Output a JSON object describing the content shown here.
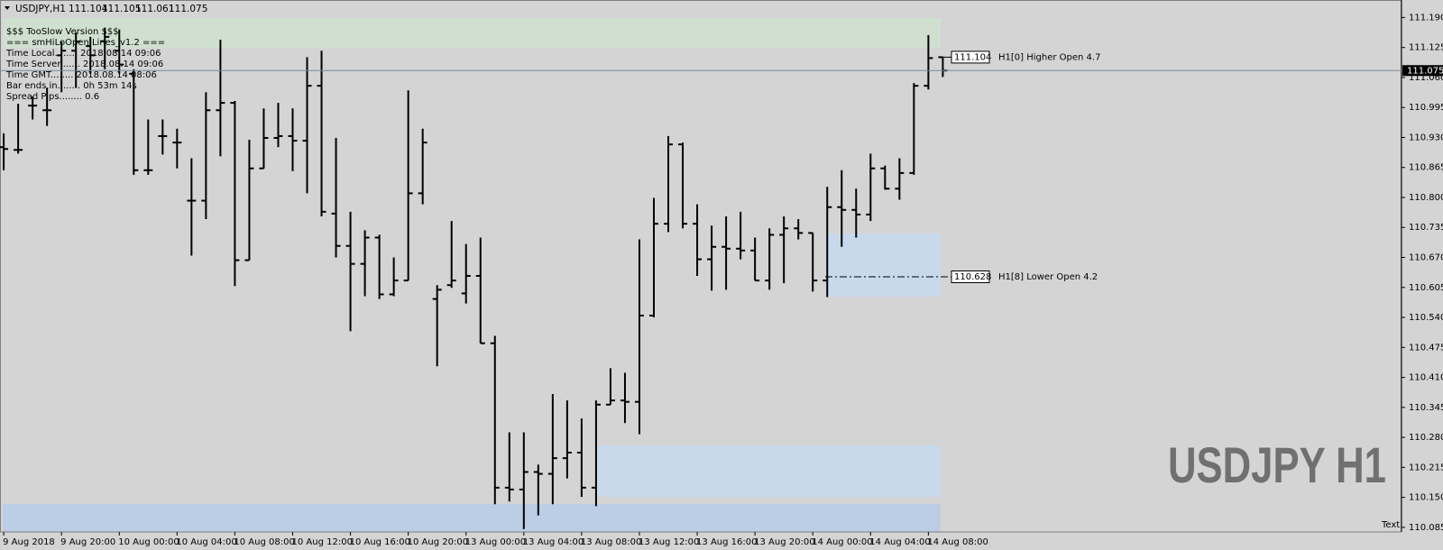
{
  "chart_data": {
    "type": "ohlc",
    "title": "USDJPY,H1",
    "categories": [
      "9 Aug 2018",
      null,
      null,
      null,
      "9 Aug 20:00",
      null,
      null,
      null,
      "10 Aug 00:00",
      null,
      null,
      null,
      "10 Aug 04:00",
      null,
      null,
      null,
      "10 Aug 08:00",
      null,
      null,
      null,
      "10 Aug 12:00",
      null,
      null,
      null,
      "10 Aug 16:00",
      null,
      null,
      null,
      "10 Aug 20:00",
      null,
      null,
      null,
      "13 Aug 00:00",
      null,
      null,
      null,
      "13 Aug 04:00",
      null,
      null,
      null,
      "13 Aug 08:00",
      null,
      null,
      null,
      "13 Aug 12:00",
      null,
      null,
      null,
      "13 Aug 16:00",
      null,
      null,
      null,
      "13 Aug 20:00",
      null,
      null,
      null,
      "14 Aug 00:00",
      null,
      null,
      null,
      "14 Aug 04:00",
      null,
      null,
      null,
      "14 Aug 08:00",
      null
    ],
    "open": [
      110.909,
      110.903,
      110.999,
      110.989,
      111.108,
      111.118,
      111.128,
      111.138,
      111.118,
      111.068,
      110.859,
      110.933,
      110.919,
      110.793,
      110.793,
      110.989,
      111.005,
      110.664,
      110.863,
      110.929,
      110.933,
      110.923,
      111.042,
      110.765,
      110.695,
      110.656,
      110.713,
      110.59,
      110.62,
      110.809,
      110.58,
      110.61,
      110.592,
      110.63,
      110.484,
      110.171,
      110.167,
      110.205,
      110.201,
      110.235,
      110.247,
      110.171,
      110.351,
      110.36,
      110.357,
      110.544,
      110.743,
      110.915,
      110.743,
      110.666,
      110.693,
      110.689,
      110.685,
      110.62,
      110.719,
      110.733,
      110.723,
      110.62,
      110.779,
      110.773,
      110.763,
      110.863,
      110.819,
      110.853,
      111.042,
      111.104
    ],
    "high": [
      110.939,
      111.003,
      111.019,
      111.038,
      111.138,
      111.158,
      111.148,
      111.168,
      111.164,
      111.078,
      110.969,
      110.969,
      110.949,
      110.885,
      111.028,
      111.142,
      111.009,
      110.925,
      110.993,
      111.005,
      110.993,
      111.104,
      111.118,
      110.929,
      110.769,
      110.729,
      110.719,
      110.67,
      111.032,
      110.949,
      110.61,
      110.749,
      110.699,
      110.713,
      110.5,
      110.291,
      110.291,
      110.221,
      110.374,
      110.36,
      110.321,
      110.36,
      110.43,
      110.42,
      110.709,
      110.799,
      110.933,
      110.919,
      110.785,
      110.739,
      110.759,
      110.769,
      110.713,
      110.733,
      110.759,
      110.753,
      110.723,
      110.823,
      110.859,
      110.819,
      110.895,
      110.869,
      110.885,
      111.048,
      111.152,
      111.105
    ],
    "low": [
      110.859,
      110.895,
      110.969,
      110.955,
      111.028,
      111.038,
      111.068,
      111.078,
      111.068,
      110.849,
      110.849,
      110.893,
      110.863,
      110.674,
      110.753,
      110.889,
      110.608,
      110.664,
      110.863,
      110.909,
      110.857,
      110.809,
      110.759,
      110.67,
      110.51,
      110.586,
      110.58,
      110.586,
      110.62,
      110.785,
      110.434,
      110.604,
      110.57,
      110.484,
      110.135,
      110.141,
      110.081,
      110.111,
      110.135,
      110.191,
      110.151,
      110.131,
      110.351,
      110.311,
      110.287,
      110.54,
      110.725,
      110.733,
      110.63,
      110.598,
      110.6,
      110.666,
      110.62,
      110.6,
      110.614,
      110.709,
      110.596,
      110.584,
      110.693,
      110.713,
      110.749,
      110.817,
      110.795,
      110.849,
      111.034,
      111.061
    ],
    "close": [
      110.905,
      110.903,
      110.999,
      110.989,
      111.118,
      111.138,
      111.108,
      111.148,
      111.088,
      110.859,
      110.859,
      110.933,
      110.919,
      110.793,
      110.989,
      111.005,
      110.664,
      110.863,
      110.929,
      110.933,
      110.923,
      111.042,
      110.769,
      110.695,
      110.656,
      110.713,
      110.59,
      110.62,
      110.809,
      110.919,
      110.6,
      110.62,
      110.63,
      110.484,
      110.171,
      110.167,
      110.205,
      110.201,
      110.235,
      110.247,
      110.171,
      110.351,
      110.36,
      110.357,
      110.544,
      110.743,
      110.915,
      110.743,
      110.666,
      110.693,
      110.689,
      110.685,
      110.62,
      110.719,
      110.733,
      110.723,
      110.62,
      110.779,
      110.773,
      110.763,
      110.863,
      110.819,
      110.853,
      111.042,
      111.102,
      111.075
    ],
    "color": "#000000",
    "ylim": [
      110.075,
      111.224
    ],
    "yticks": [
      {
        "value": 111.19,
        "label": "111.190"
      },
      111.125,
      {
        "value": 111.06,
        "label": "111.060"
      },
      110.995,
      {
        "value": 110.93,
        "label": "110.930"
      },
      110.865,
      {
        "value": 110.8,
        "label": "110.800"
      },
      110.735,
      {
        "value": 110.67,
        "label": "110.670"
      },
      110.605,
      {
        "value": 110.54,
        "label": "110.540"
      },
      110.475,
      {
        "value": 110.41,
        "label": "110.410"
      },
      110.345,
      {
        "value": 110.28,
        "label": "110.280"
      },
      110.215,
      {
        "value": 110.15,
        "label": "110.150"
      },
      110.085
    ],
    "grid": false,
    "levels": [
      {
        "value": 111.104,
        "label": "H1[0] Higher Open 4.7"
      },
      {
        "value": 110.628,
        "label": "H1[8] Lower Open 4.2"
      }
    ],
    "info_lines": [
      "$$$ TooSlow Version $$$",
      "=== smHiLoOpen Lines_v1.2 ===",
      "Time Local........ 2018.08.14 09:06",
      "Time Server....... 2018.08.14 09:06",
      "Time GMT........ 2018.08.14 08:06",
      "Bar ends in........ 0h 53m 14s",
      "Spread Pips........ 0.6"
    ],
    "watermark": "USDJPY H1",
    "corner_text": "Text"
  }
}
